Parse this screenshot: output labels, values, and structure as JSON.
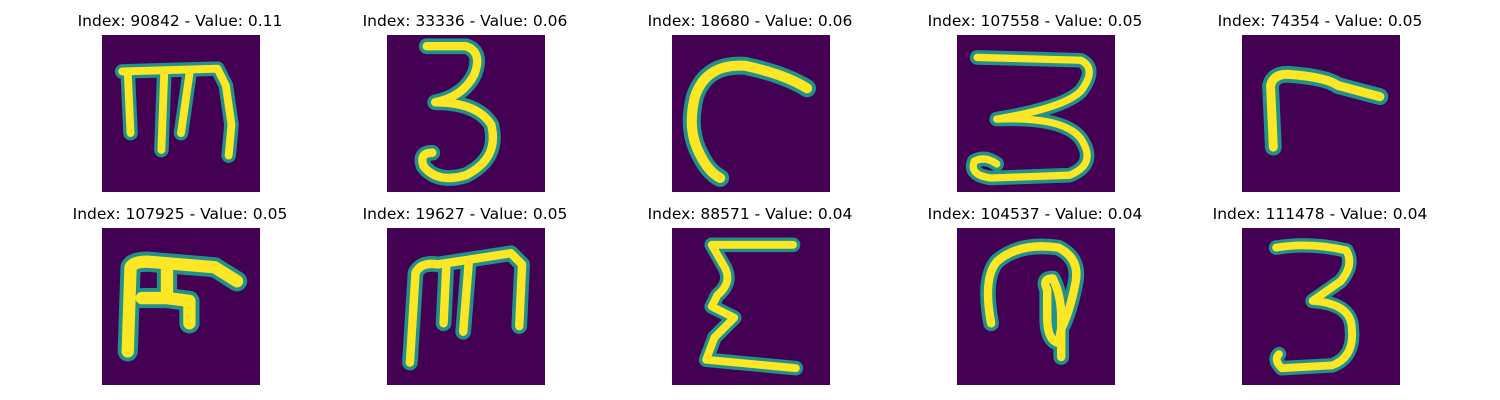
{
  "figure": {
    "background_color": "#440154",
    "stroke_color": "#fde725",
    "edge_color": "#21918c",
    "panels": [
      {
        "title": "Index: 90842 - Value: 0.11",
        "glyph": "m-shape"
      },
      {
        "title": "Index: 33336 - Value: 0.06",
        "glyph": "three-shape"
      },
      {
        "title": "Index: 18680 - Value: 0.06",
        "glyph": "hook-shape"
      },
      {
        "title": "Index: 107558 - Value: 0.05",
        "glyph": "three-bar-shape"
      },
      {
        "title": "Index: 74354 - Value: 0.05",
        "glyph": "r-shape"
      },
      {
        "title": "Index: 107925 - Value: 0.05",
        "glyph": "fork-shape"
      },
      {
        "title": "Index: 19627 - Value: 0.05",
        "glyph": "m-shape-2"
      },
      {
        "title": "Index: 88571 - Value: 0.04",
        "glyph": "sigma-shape"
      },
      {
        "title": "Index: 104537 - Value: 0.04",
        "glyph": "loop-shape"
      },
      {
        "title": "Index: 111478 - Value: 0.04",
        "glyph": "three-shape-2"
      }
    ]
  }
}
